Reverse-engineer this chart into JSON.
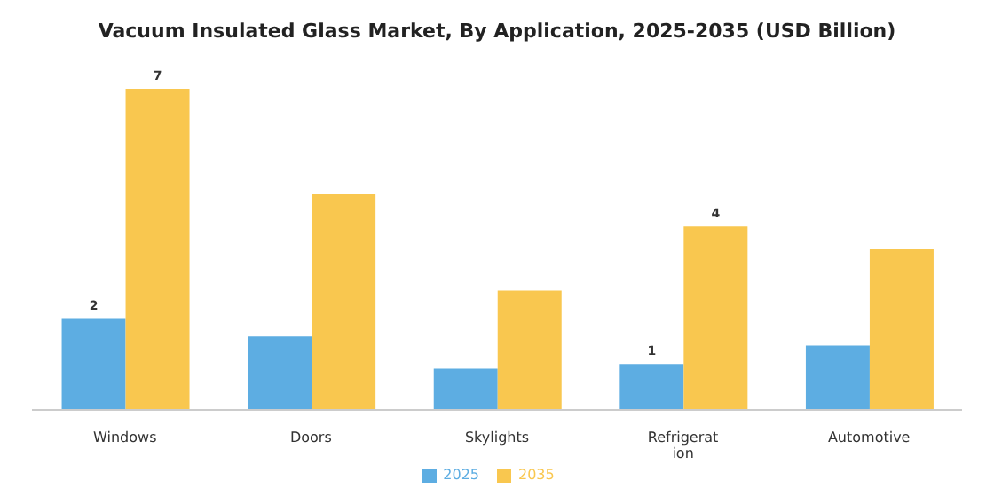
{
  "chart_data": {
    "type": "bar",
    "title": "Vacuum Insulated Glass Market, By Application, 2025-2035 (USD Billion)",
    "categories": [
      "Windows",
      "Doors",
      "Skylights",
      "Refrigeration",
      "Automotive"
    ],
    "series": [
      {
        "name": "2025",
        "color": "#5dade2",
        "values": [
          2,
          1.6,
          0.9,
          1,
          1.4
        ],
        "value_labels": [
          "2",
          null,
          null,
          "1",
          null
        ]
      },
      {
        "name": "2035",
        "color": "#f9c74f",
        "values": [
          7,
          4.7,
          2.6,
          4,
          3.5
        ],
        "value_labels": [
          "7",
          null,
          null,
          "4",
          null
        ]
      }
    ],
    "legend": "bottom",
    "grid": false
  }
}
